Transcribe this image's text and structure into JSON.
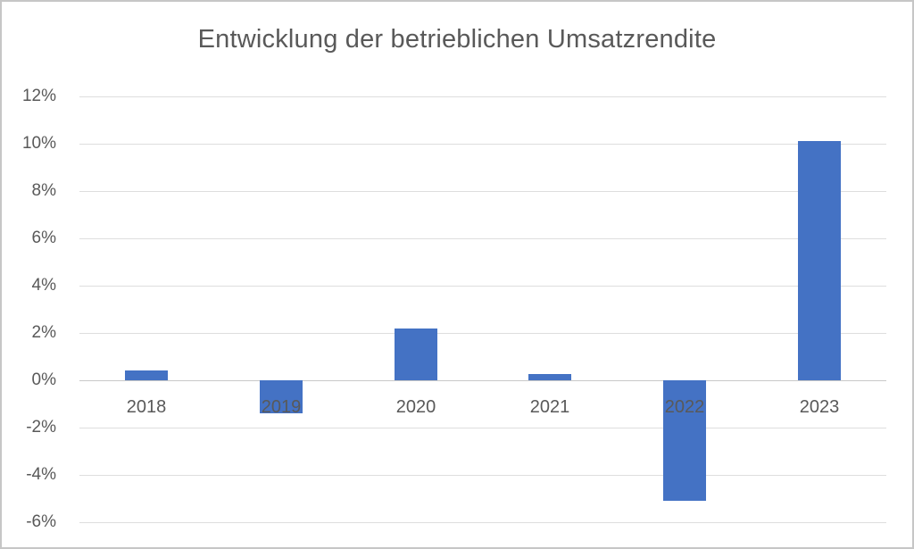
{
  "frame": {
    "background_color": "#FFFFFF",
    "border_color": "#C6C6C6"
  },
  "chart_data": {
    "type": "bar",
    "title": "Entwicklung der betrieblichen Umsatzrendite",
    "categories": [
      "2018",
      "2019",
      "2020",
      "2021",
      "2022",
      "2023"
    ],
    "values": [
      0.4,
      -1.4,
      2.2,
      0.25,
      -5.1,
      10.1
    ],
    "value_unit": "%",
    "xlabel": "",
    "ylabel": "",
    "ylim": [
      -6,
      12
    ],
    "ytick_step": 2,
    "ytick_labels": [
      "12%",
      "10%",
      "8%",
      "6%",
      "4%",
      "2%",
      "0%",
      "-2%",
      "-4%",
      "-6%"
    ],
    "grid": "horizontal",
    "legend": "none",
    "bar_color": "#4472C4",
    "gridline_color": "#DEDEDE",
    "zero_line_color": "#C9C9C9",
    "text_color": "#595959",
    "title_color": "#595959"
  }
}
